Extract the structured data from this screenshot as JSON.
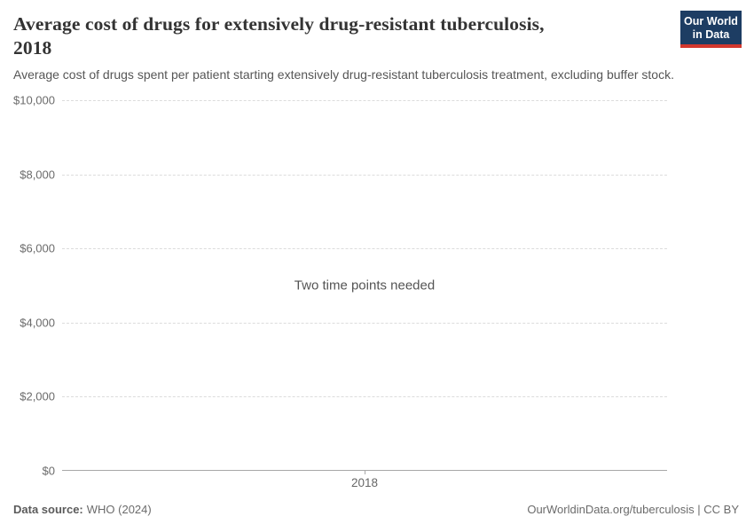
{
  "header": {
    "title_line1": "Average cost of drugs for extensively drug-resistant tuberculosis,",
    "title_line2": "2018",
    "subtitle": "Average cost of drugs spent per patient starting extensively drug-resistant tuberculosis treatment, excluding buffer stock.",
    "logo": {
      "line1": "Our World",
      "line2": "in Data",
      "bg_color": "#1d3d63",
      "accent_color": "#d3372d",
      "text_color": "#ffffff"
    }
  },
  "chart_data": {
    "type": "line",
    "title": "Average cost of drugs for extensively drug-resistant tuberculosis, 2018",
    "empty_state_message": "Two time points needed",
    "series": [],
    "x": [
      2018
    ],
    "xticks": [
      {
        "value": 2018,
        "label": "2018"
      }
    ],
    "yticks": [
      {
        "value": 0,
        "label": "$0"
      },
      {
        "value": 2000,
        "label": "$2,000"
      },
      {
        "value": 4000,
        "label": "$4,000"
      },
      {
        "value": 6000,
        "label": "$6,000"
      },
      {
        "value": 8000,
        "label": "$8,000"
      },
      {
        "value": 10000,
        "label": "$10,000"
      }
    ],
    "ylim": [
      0,
      10000
    ],
    "xlabel": "",
    "ylabel": "",
    "grid": "horizontal-dashed",
    "legend": "none"
  },
  "footer": {
    "source_label": "Data source:",
    "source_value": "WHO (2024)",
    "attribution": "OurWorldinData.org/tuberculosis | CC BY"
  },
  "colors": {
    "gridline": "#dcdcdc",
    "axis_line": "#a8a8a8",
    "tick_text": "#6b6b6b",
    "title_text": "#333333",
    "subtitle_text": "#565656"
  }
}
